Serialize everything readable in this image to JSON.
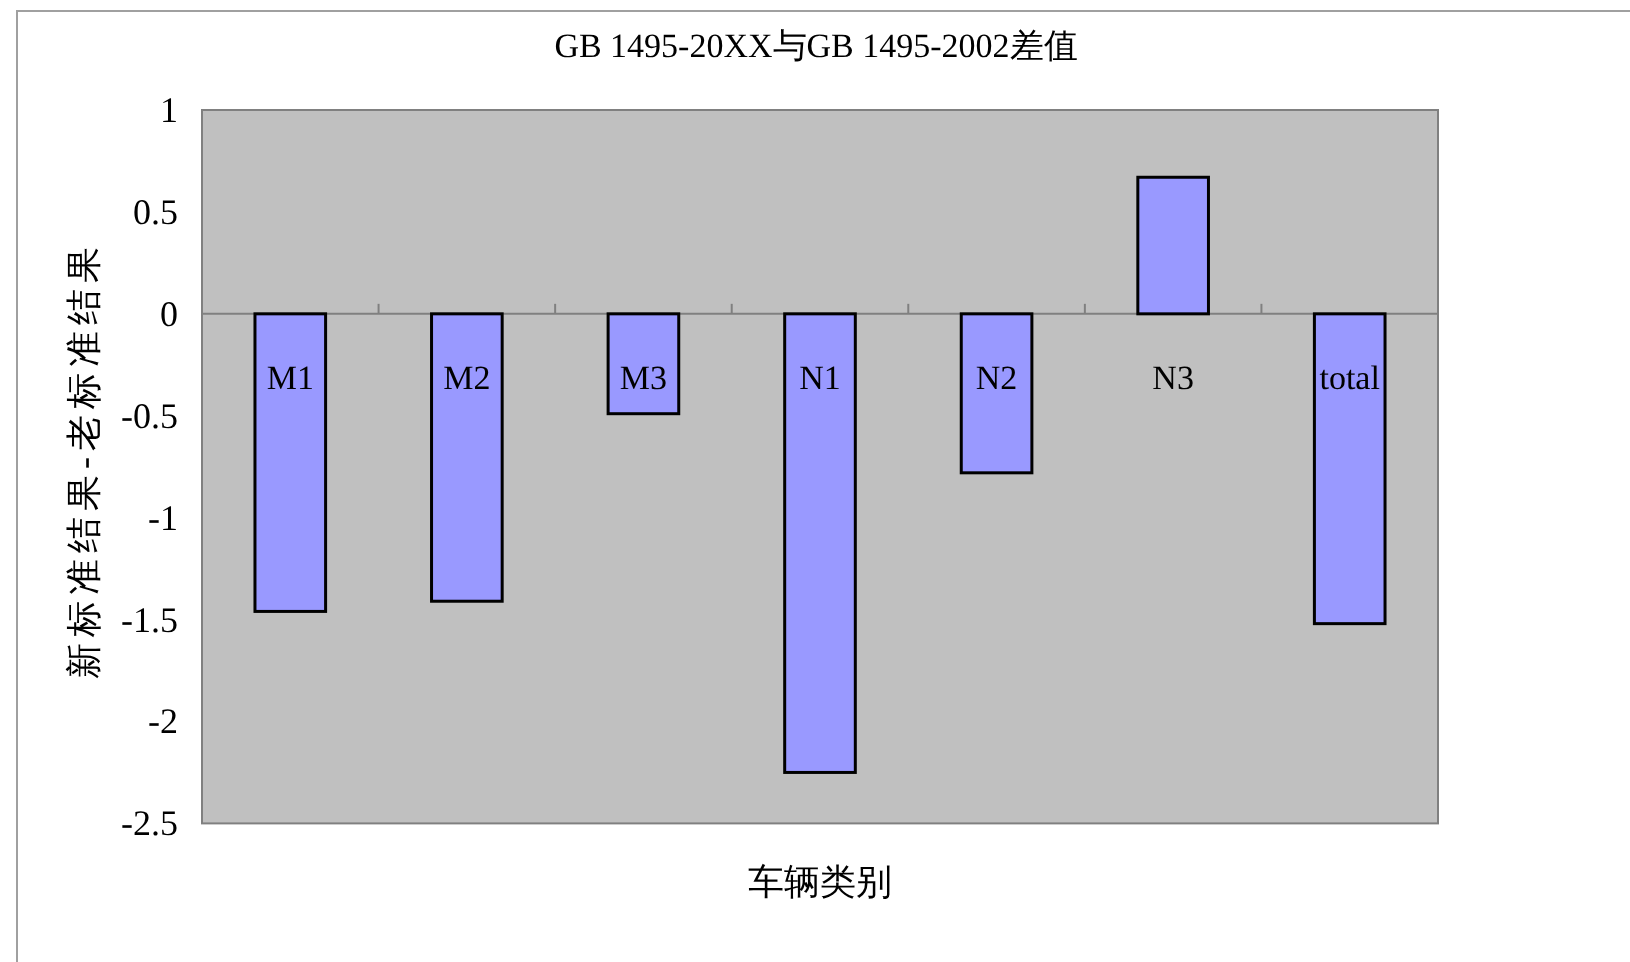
{
  "chart_data": {
    "type": "bar",
    "title": "GB 1495-20XX与GB 1495-2002差值",
    "xlabel": "车辆类别",
    "ylabel": "新标准结果-老标准结果",
    "categories": [
      "M1",
      "M2",
      "M3",
      "N1",
      "N2",
      "N3",
      "total"
    ],
    "series": [
      {
        "color": "#9999ff",
        "values": [
          -1.46,
          -1.41,
          -0.49,
          -2.25,
          -0.78,
          0.67,
          -1.52
        ]
      }
    ],
    "ylim": [
      -2.5,
      1
    ],
    "yticks": [
      1,
      0.5,
      0,
      -0.5,
      -1,
      -1.5,
      -2,
      -2.5
    ]
  }
}
